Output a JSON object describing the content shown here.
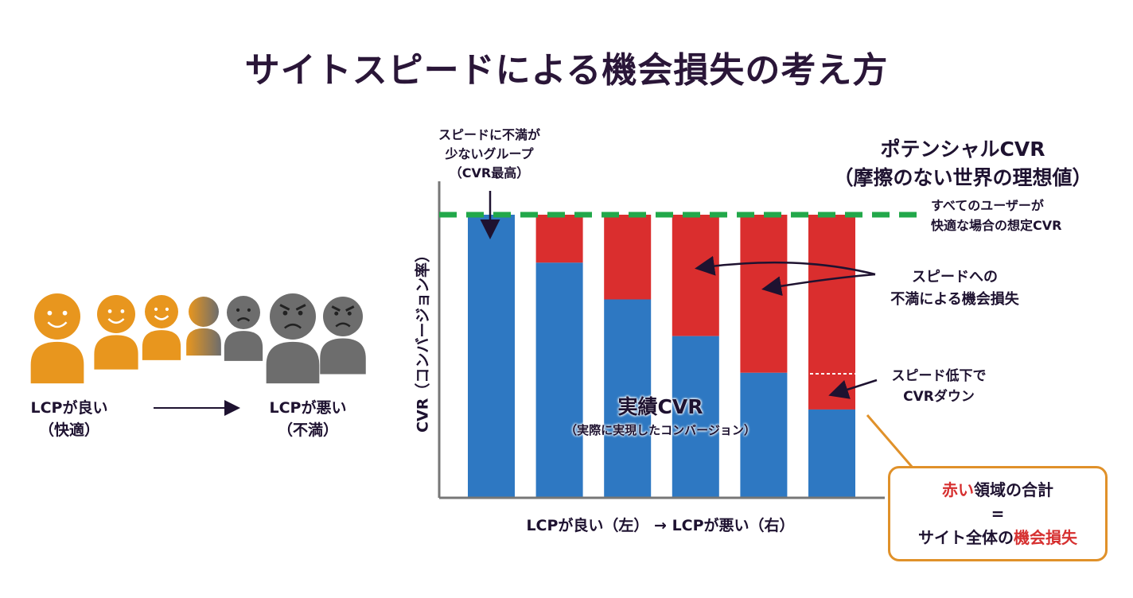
{
  "title": "サイトスピードによる機会損失の考え方",
  "left_panel": {
    "good_label_1": "LCPが良い",
    "good_label_2": "（快適）",
    "bad_label_1": "LCPが悪い",
    "bad_label_2": "（不満）",
    "people": [
      "happy",
      "happy",
      "happy",
      "neutral",
      "sad",
      "angry",
      "angry"
    ]
  },
  "chart": {
    "y_axis_label": "CVR（コンバージョン率）",
    "x_axis_label": "LCPが良い（左） → LCPが悪い（右）",
    "potential_cvr": 100,
    "actual_cvr": [
      100,
      83,
      70,
      57,
      44,
      31
    ],
    "colors": {
      "actual": "#2E78C2",
      "loss": "#DA2E2E",
      "potential_line": "#22A84A",
      "callout_border": "#E0912A"
    }
  },
  "annotations": {
    "top_group": [
      "スピードに不満が",
      "少ないグループ",
      "（CVR最高）"
    ],
    "potential_title": "ポテンシャルCVR",
    "potential_sub": "（摩擦のない世界の理想値）",
    "potential_note": [
      "すべてのユーザーが",
      "快適な場合の想定CVR"
    ],
    "loss_note": [
      "スピードへの",
      "不満による機会損失"
    ],
    "drop_note": [
      "スピード低下で",
      "CVRダウン"
    ],
    "actual_title": "実績CVR",
    "actual_sub": "（実際に実現したコンバージョン）"
  },
  "callout": {
    "line1_red": "赤い",
    "line1_rest": "領域の合計",
    "line2": "=",
    "line3_rest": "サイト全体の",
    "line3_red": "機会損失"
  }
}
